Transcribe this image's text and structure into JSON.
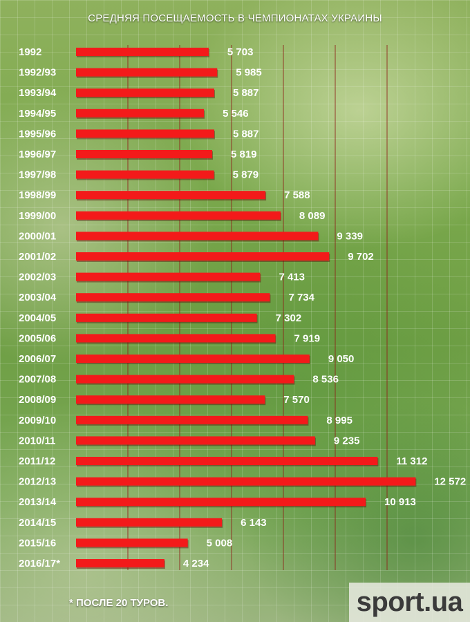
{
  "chart_data": {
    "type": "bar",
    "orientation": "horizontal",
    "title": "СРЕДНЯЯ ПОСЕЩАЕМОСТЬ В ЧЕМПИОНАТАХ УКРАИНЫ",
    "categories": [
      "1992",
      "1992/93",
      "1993/94",
      "1994/95",
      "1995/96",
      "1996/97",
      "1997/98",
      "1998/99",
      "1999/00",
      "2000/01",
      "2001/02",
      "2002/03",
      "2003/04",
      "2004/05",
      "2005/06",
      "2006/07",
      "2007/08",
      "2008/09",
      "2009/10",
      "2010/11",
      "2011/12",
      "2012/13",
      "2013/14",
      "2014/15",
      "2015/16",
      "2016/17*"
    ],
    "values": [
      5703,
      5985,
      5887,
      5546,
      5887,
      5819,
      5879,
      7588,
      8089,
      9339,
      9702,
      7413,
      7734,
      7302,
      7919,
      9050,
      8536,
      7570,
      8995,
      9235,
      11312,
      12572,
      10913,
      6143,
      5008,
      4234
    ],
    "value_labels": [
      "5 703",
      "5 985",
      "5 887",
      "5 546",
      "5 887",
      "5 819",
      "5 879",
      "7 588",
      "8 089",
      "9 339",
      "9 702",
      "7 413",
      "7 734",
      "7 302",
      "7 919",
      "9 050",
      "8 536",
      "7 570",
      "8 995",
      "9 235",
      "11 312",
      "12 572",
      "10 913",
      "6 143",
      "5 008",
      "4 234"
    ],
    "xlim": [
      1300,
      13000
    ],
    "bar_color": "#f31a1a",
    "label_color": "#ffffff",
    "footnote": "* ПОСЛЕ 20 ТУРОВ."
  },
  "logo": {
    "text": "sport.ua"
  }
}
